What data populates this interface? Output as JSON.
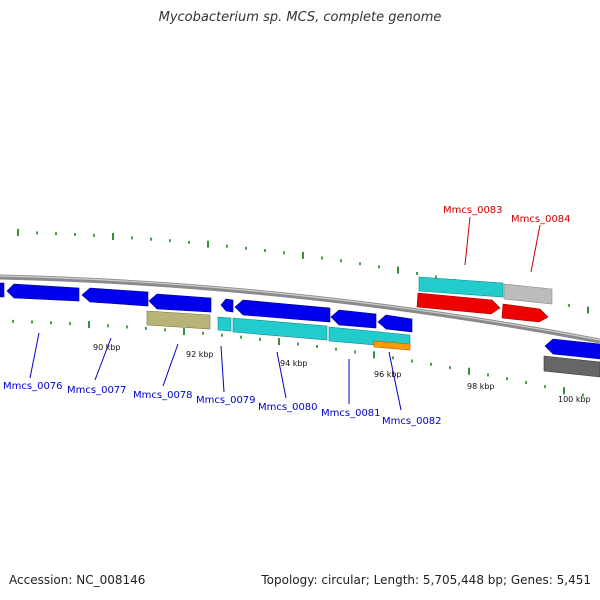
{
  "title": "Mycobacterium sp. MCS, complete genome",
  "footer": {
    "accession": "Accession: NC_008146",
    "summary": "Topology: circular; Length: 5,705,448 bp; Genes: 5,451"
  },
  "colors": {
    "blue_gene": "#0000ee",
    "cyan_gene": "#22cccc",
    "red_gene": "#ee0000",
    "grey_gene": "#bbbbbb",
    "olive_gene": "#b8b478",
    "orange_gene": "#ff9900",
    "backbone": "#888888",
    "tick": "#007700",
    "label_blue": "#0000cc",
    "label_red": "#cc0000"
  },
  "kbp_labels": [
    "90 kbp",
    "92 kbp",
    "94 kbp",
    "96 kbp",
    "98 kbp",
    "100 kbp"
  ],
  "genes": [
    {
      "name": "Mmcs_0076",
      "color": "label_blue"
    },
    {
      "name": "Mmcs_0077",
      "color": "label_blue"
    },
    {
      "name": "Mmcs_0078",
      "color": "label_blue"
    },
    {
      "name": "Mmcs_0079",
      "color": "label_blue"
    },
    {
      "name": "Mmcs_0080",
      "color": "label_blue"
    },
    {
      "name": "Mmcs_0081",
      "color": "label_blue"
    },
    {
      "name": "Mmcs_0082",
      "color": "label_blue"
    },
    {
      "name": "Mmcs_0083",
      "color": "label_red"
    },
    {
      "name": "Mmcs_0084",
      "color": "label_red"
    }
  ]
}
